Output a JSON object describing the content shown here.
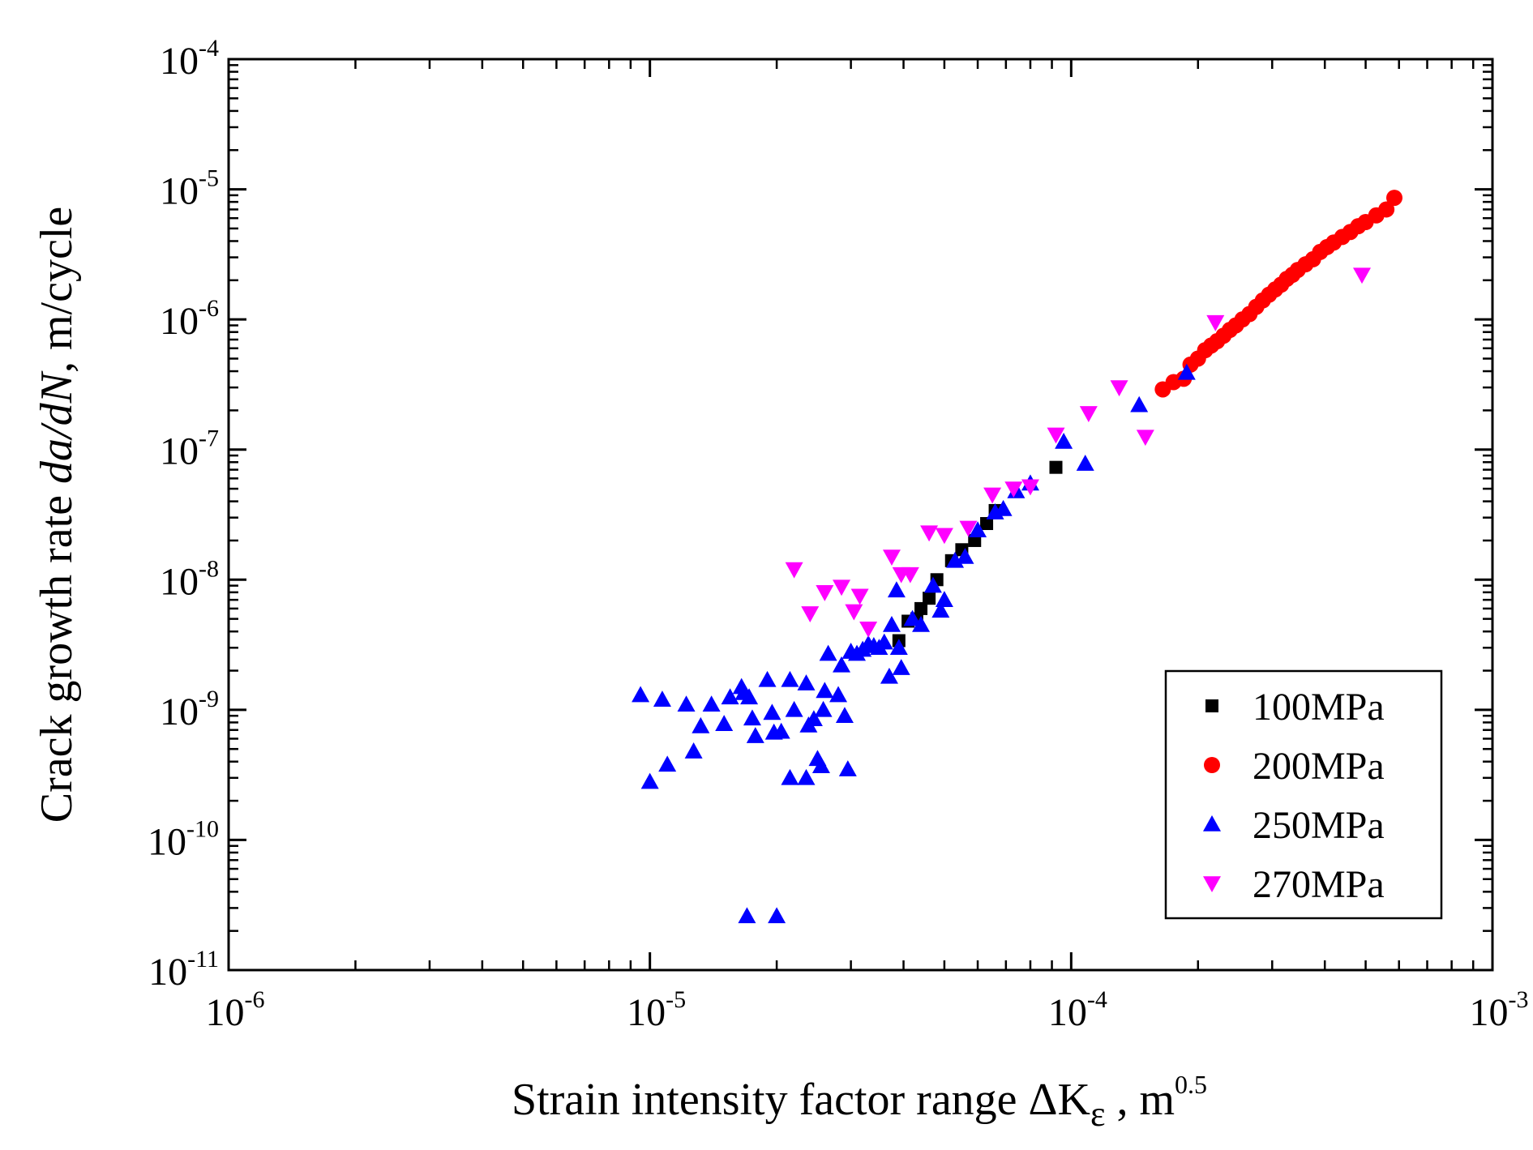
{
  "chart_data": {
    "type": "scatter",
    "x_scale": "log",
    "y_scale": "log",
    "xlim": [
      1e-06,
      0.001
    ],
    "ylim": [
      1e-11,
      0.0001
    ],
    "grid": false,
    "legend_position": "bottom-right",
    "xlabel": {
      "prefix": "Strain intensity factor range ΔK",
      "subscript": "ε",
      "middle": " , m",
      "superscript": "0.5"
    },
    "ylabel": {
      "prefix": "Crack growth rate ",
      "italic": "da/dN",
      "suffix": ", m/cycle"
    },
    "x_ticks": [
      {
        "value": 1e-06,
        "base": "10",
        "exp": "-6"
      },
      {
        "value": 1e-05,
        "base": "10",
        "exp": "-5"
      },
      {
        "value": 0.0001,
        "base": "10",
        "exp": "-4"
      },
      {
        "value": 0.001,
        "base": "10",
        "exp": "-3"
      }
    ],
    "y_ticks": [
      {
        "value": 1e-11,
        "base": "10",
        "exp": "-11"
      },
      {
        "value": 1e-10,
        "base": "10",
        "exp": "-10"
      },
      {
        "value": 1e-09,
        "base": "10",
        "exp": "-9"
      },
      {
        "value": 1e-08,
        "base": "10",
        "exp": "-8"
      },
      {
        "value": 1e-07,
        "base": "10",
        "exp": "-7"
      },
      {
        "value": 1e-06,
        "base": "10",
        "exp": "-6"
      },
      {
        "value": 1e-05,
        "base": "10",
        "exp": "-5"
      },
      {
        "value": 0.0001,
        "base": "10",
        "exp": "-4"
      }
    ],
    "series": [
      {
        "name": "100MPa",
        "marker": "square",
        "color": "#000000",
        "points": [
          [
            3.9e-05,
            3.4e-09
          ],
          [
            4.1e-05,
            4.8e-09
          ],
          [
            4.3e-05,
            5e-09
          ],
          [
            4.4e-05,
            6e-09
          ],
          [
            4.6e-05,
            7.2e-09
          ],
          [
            4.8e-05,
            1e-08
          ],
          [
            5.2e-05,
            1.4e-08
          ],
          [
            5.5e-05,
            1.7e-08
          ],
          [
            5.9e-05,
            2e-08
          ],
          [
            6.3e-05,
            2.7e-08
          ],
          [
            6.6e-05,
            3.4e-08
          ],
          [
            9.2e-05,
            7.3e-08
          ]
        ]
      },
      {
        "name": "200MPa",
        "marker": "circle",
        "color": "#ff0000",
        "points": [
          [
            0.000165,
            2.9e-07
          ],
          [
            0.000175,
            3.3e-07
          ],
          [
            0.000185,
            3.5e-07
          ],
          [
            0.000192,
            4.5e-07
          ],
          [
            0.0002,
            5e-07
          ],
          [
            0.000208,
            5.8e-07
          ],
          [
            0.000215,
            6.3e-07
          ],
          [
            0.000222,
            6.8e-07
          ],
          [
            0.00023,
            7.5e-07
          ],
          [
            0.000238,
            8.3e-07
          ],
          [
            0.000246,
            9e-07
          ],
          [
            0.000255,
            1e-06
          ],
          [
            0.000265,
            1.1e-06
          ],
          [
            0.000275,
            1.25e-06
          ],
          [
            0.000285,
            1.4e-06
          ],
          [
            0.000295,
            1.55e-06
          ],
          [
            0.000305,
            1.7e-06
          ],
          [
            0.000315,
            1.85e-06
          ],
          [
            0.000325,
            2.05e-06
          ],
          [
            0.000335,
            2.2e-06
          ],
          [
            0.000345,
            2.4e-06
          ],
          [
            0.00036,
            2.65e-06
          ],
          [
            0.000375,
            2.9e-06
          ],
          [
            0.00039,
            3.3e-06
          ],
          [
            0.000405,
            3.6e-06
          ],
          [
            0.00042,
            3.9e-06
          ],
          [
            0.00044,
            4.3e-06
          ],
          [
            0.00046,
            4.7e-06
          ],
          [
            0.00048,
            5.2e-06
          ],
          [
            0.0005,
            5.6e-06
          ],
          [
            0.00053,
            6.3e-06
          ],
          [
            0.00056,
            7e-06
          ],
          [
            0.000585,
            8.6e-06
          ]
        ]
      },
      {
        "name": "250MPa",
        "marker": "triangle-up",
        "color": "#0000ff",
        "points": [
          [
            9.5e-06,
            1.3e-09
          ],
          [
            1e-05,
            2.8e-10
          ],
          [
            1.07e-05,
            1.2e-09
          ],
          [
            1.1e-05,
            3.8e-10
          ],
          [
            1.22e-05,
            1.1e-09
          ],
          [
            1.27e-05,
            4.8e-10
          ],
          [
            1.32e-05,
            7.5e-10
          ],
          [
            1.4e-05,
            1.1e-09
          ],
          [
            1.5e-05,
            7.8e-10
          ],
          [
            1.55e-05,
            1.25e-09
          ],
          [
            1.65e-05,
            1.5e-09
          ],
          [
            1.67e-05,
            1.35e-09
          ],
          [
            1.72e-05,
            1.25e-09
          ],
          [
            1.75e-05,
            8.6e-10
          ],
          [
            1.78e-05,
            6.3e-10
          ],
          [
            1.9e-05,
            1.7e-09
          ],
          [
            1.95e-05,
            9.5e-10
          ],
          [
            1.97e-05,
            6.7e-10
          ],
          [
            2.05e-05,
            6.8e-10
          ],
          [
            2.15e-05,
            1.7e-09
          ],
          [
            2.2e-05,
            1e-09
          ],
          [
            2.15e-05,
            3e-10
          ],
          [
            2.35e-05,
            1.6e-09
          ],
          [
            2.38e-05,
            7.6e-10
          ],
          [
            2.45e-05,
            8.5e-10
          ],
          [
            2.5e-05,
            4.2e-10
          ],
          [
            2.55e-05,
            3.7e-10
          ],
          [
            2.58e-05,
            1e-09
          ],
          [
            2.65e-05,
            2.7e-09
          ],
          [
            2.6e-05,
            1.4e-09
          ],
          [
            2.35e-05,
            3e-10
          ],
          [
            2.8e-05,
            1.3e-09
          ],
          [
            2.85e-05,
            2.2e-09
          ],
          [
            2.9e-05,
            9e-10
          ],
          [
            2.95e-05,
            3.5e-10
          ],
          [
            3e-05,
            2.8e-09
          ],
          [
            3.1e-05,
            2.7e-09
          ],
          [
            3.2e-05,
            2.9e-09
          ],
          [
            3.3e-05,
            3.2e-09
          ],
          [
            3.4e-05,
            3.1e-09
          ],
          [
            3.5e-05,
            3e-09
          ],
          [
            3.6e-05,
            3.3e-09
          ],
          [
            3.7e-05,
            1.8e-09
          ],
          [
            3.75e-05,
            4.5e-09
          ],
          [
            3.85e-05,
            8.3e-09
          ],
          [
            3.9e-05,
            3e-09
          ],
          [
            3.95e-05,
            2.1e-09
          ],
          [
            4.2e-05,
            5e-09
          ],
          [
            4.4e-05,
            4.5e-09
          ],
          [
            4.7e-05,
            9e-09
          ],
          [
            4.9e-05,
            5.8e-09
          ],
          [
            5e-05,
            7e-09
          ],
          [
            5.3e-05,
            1.4e-08
          ],
          [
            5.6e-05,
            1.5e-08
          ],
          [
            6e-05,
            2.4e-08
          ],
          [
            6.6e-05,
            3.3e-08
          ],
          [
            6.9e-05,
            3.5e-08
          ],
          [
            7.4e-05,
            4.8e-08
          ],
          [
            8e-05,
            5.5e-08
          ],
          [
            9.6e-05,
            1.15e-07
          ],
          [
            0.000108,
            7.8e-08
          ],
          [
            0.000145,
            2.2e-07
          ],
          [
            0.000188,
            3.9e-07
          ],
          [
            1.7e-05,
            2.6e-11
          ],
          [
            2e-05,
            2.6e-11
          ]
        ]
      },
      {
        "name": "270MPa",
        "marker": "triangle-down",
        "color": "#ff00ff",
        "points": [
          [
            2.2e-05,
            1.2e-08
          ],
          [
            2.4e-05,
            5.5e-09
          ],
          [
            2.6e-05,
            8e-09
          ],
          [
            2.85e-05,
            8.8e-09
          ],
          [
            3.05e-05,
            5.7e-09
          ],
          [
            3.15e-05,
            7.5e-09
          ],
          [
            3.3e-05,
            4.2e-09
          ],
          [
            3.75e-05,
            1.5e-08
          ],
          [
            3.95e-05,
            1.1e-08
          ],
          [
            4.15e-05,
            1.1e-08
          ],
          [
            4.6e-05,
            2.3e-08
          ],
          [
            5e-05,
            2.2e-08
          ],
          [
            5.7e-05,
            2.5e-08
          ],
          [
            6.5e-05,
            4.5e-08
          ],
          [
            7.3e-05,
            5e-08
          ],
          [
            8e-05,
            5.2e-08
          ],
          [
            9.2e-05,
            1.3e-07
          ],
          [
            0.00011,
            1.9e-07
          ],
          [
            0.00013,
            3e-07
          ],
          [
            0.00015,
            1.25e-07
          ],
          [
            0.00022,
            9.5e-07
          ],
          [
            0.00049,
            2.2e-06
          ]
        ]
      }
    ]
  }
}
